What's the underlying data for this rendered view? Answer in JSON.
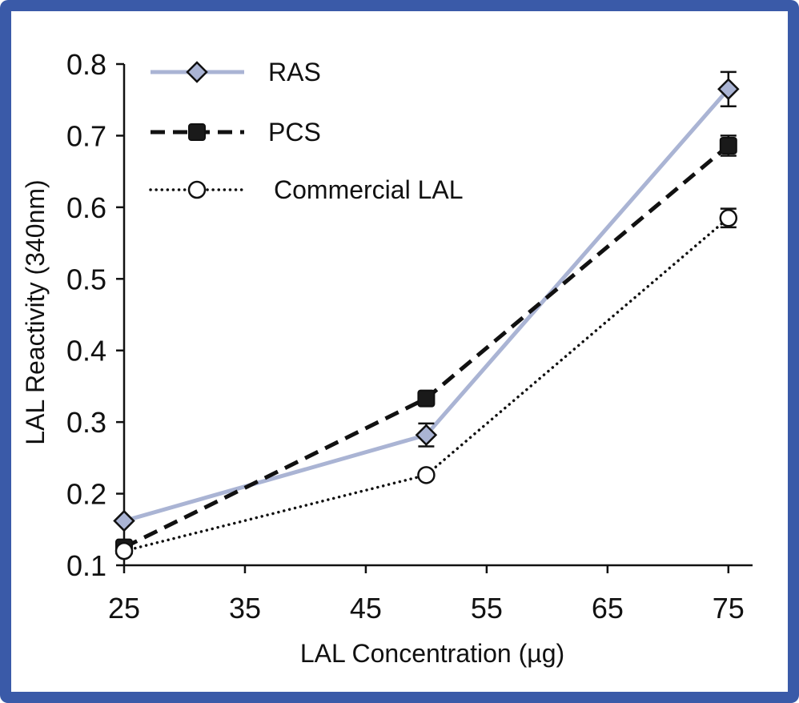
{
  "chart_data": {
    "type": "line",
    "title": "",
    "xlabel": "LAL Concentration (µg)",
    "ylabel": "LAL Reactivity (340nm)",
    "xlim": [
      25,
      77
    ],
    "ylim": [
      0.1,
      0.8
    ],
    "xticks": [
      25,
      35,
      45,
      55,
      65,
      75
    ],
    "yticks": [
      0.1,
      0.2,
      0.3,
      0.4,
      0.5,
      0.6,
      0.7,
      0.8
    ],
    "ytick_labels": [
      "0.1",
      "0.2",
      "0.3",
      "0.4",
      "0.5",
      "0.6",
      "0.7",
      "0.8"
    ],
    "legend_position": "top-left",
    "x": [
      25,
      50,
      75
    ],
    "series": [
      {
        "name": "RAS",
        "values": [
          0.162,
          0.282,
          0.765
        ],
        "errors": [
          0,
          0.016,
          0.024
        ],
        "color": "#aab4d4",
        "marker": "diamond",
        "style": "solid"
      },
      {
        "name": "PCS",
        "values": [
          0.125,
          0.333,
          0.686
        ],
        "errors": [
          0,
          0,
          0.014
        ],
        "color": "#111111",
        "marker": "square",
        "style": "dashed"
      },
      {
        "name": "Commercial LAL",
        "values": [
          0.12,
          0.226,
          0.585
        ],
        "errors": [
          0,
          0,
          0.013
        ],
        "color": "#111111",
        "marker": "circle",
        "style": "dotted"
      }
    ]
  },
  "colors": {
    "frame": "#3a5aa8",
    "ras_fill": "#aab4d4",
    "pcs_fill": "#1a1a1a",
    "circle_fill": "#ffffff"
  }
}
